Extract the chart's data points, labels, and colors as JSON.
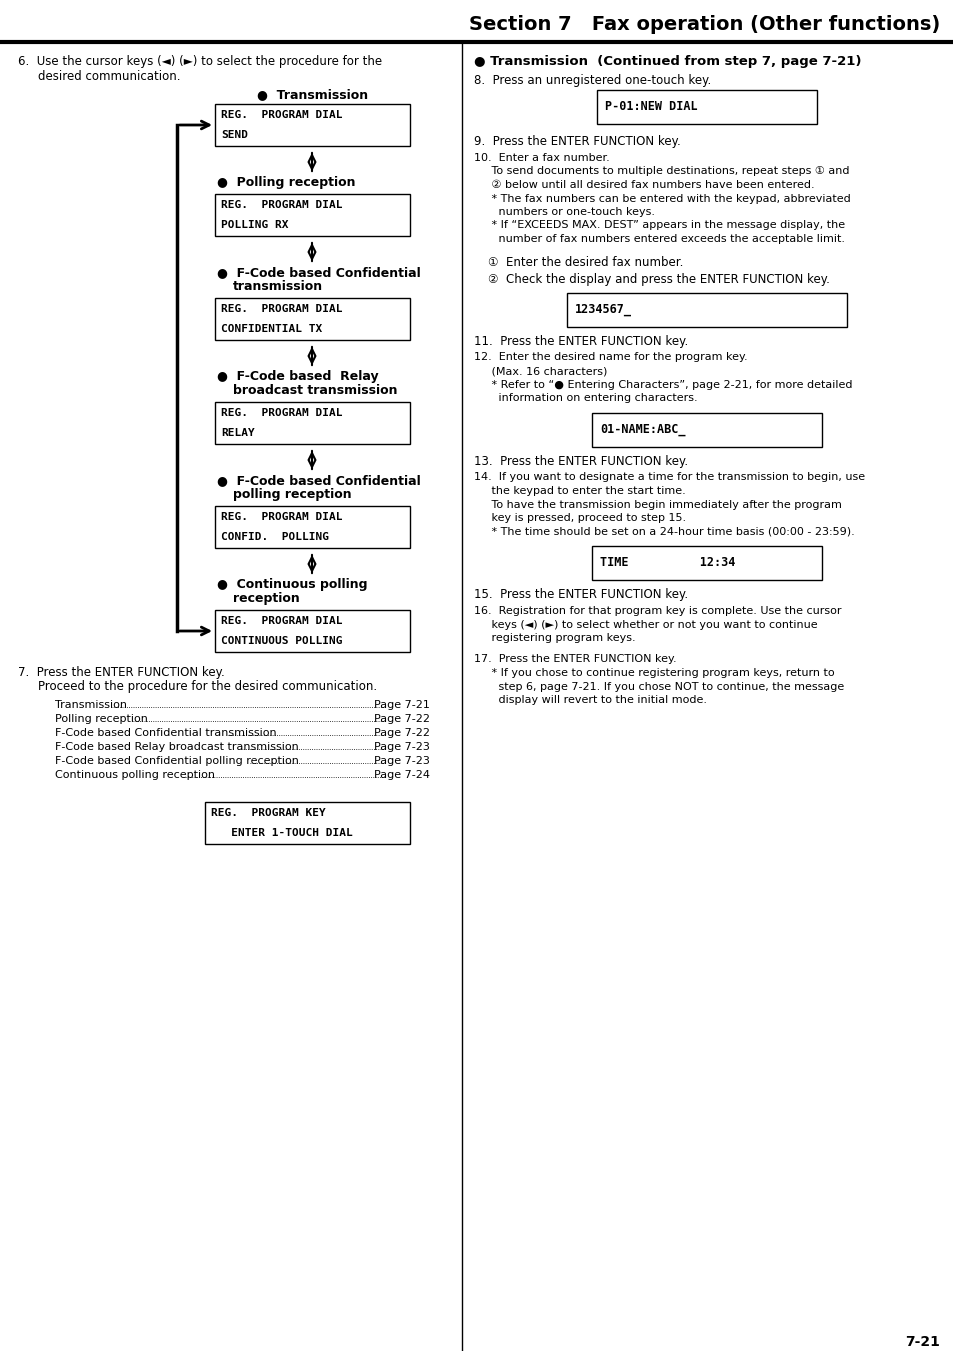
{
  "page_title": "Section 7   Fax operation (Other functions)",
  "page_number": "7-21",
  "bg_color": "#ffffff",
  "toc_items": [
    [
      "Transmission",
      "Page 7-21"
    ],
    [
      "Polling reception",
      "Page 7-22"
    ],
    [
      "F-Code based Confidential transmission",
      "Page 7-22"
    ],
    [
      "F-Code based Relay broadcast transmission",
      "Page 7-23"
    ],
    [
      "F-Code based Confidential polling reception",
      "Page 7-23"
    ],
    [
      "Continuous polling reception",
      "Page 7-24"
    ]
  ],
  "box1_lines": [
    "REG.  PROGRAM DIAL",
    "SEND"
  ],
  "box2_lines": [
    "REG.  PROGRAM DIAL",
    "POLLING RX"
  ],
  "box3_lines": [
    "REG.  PROGRAM DIAL",
    "CONFIDENTIAL TX"
  ],
  "box4_lines": [
    "REG.  PROGRAM DIAL",
    "RELAY"
  ],
  "box5_lines": [
    "REG.  PROGRAM DIAL",
    "CONFID.  POLLING"
  ],
  "box6_lines": [
    "REG.  PROGRAM DIAL",
    "CONTINUOUS POLLING"
  ],
  "box_final_lines": [
    "REG.  PROGRAM KEY",
    "   ENTER 1-TOUCH DIAL"
  ],
  "display1_text": "P-01:NEW DIAL",
  "display2_text": "1234567_",
  "display3_text": "01-NAME:ABC_",
  "display4_text": "TIME          12:34"
}
